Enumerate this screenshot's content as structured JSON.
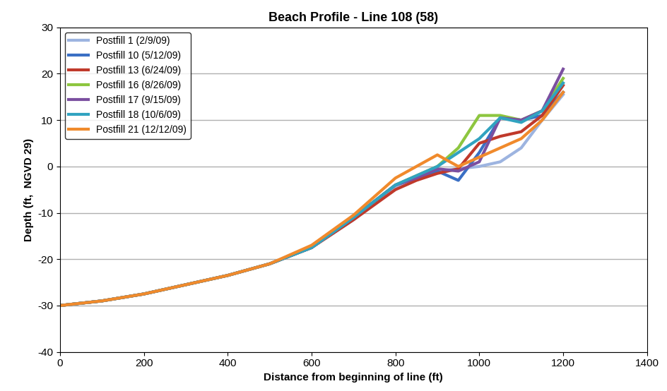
{
  "chart_data": {
    "type": "line",
    "title": "Beach Profile - Line 108 (58)",
    "x_label": "Distance from beginning of line (ft)",
    "y_label": "Depth (ft,  NGVD 29)",
    "x": [
      0,
      100,
      200,
      300,
      400,
      500,
      600,
      700,
      800,
      850,
      900,
      950,
      1000,
      1050,
      1100,
      1150,
      1200
    ],
    "series": [
      {
        "name": "Postfill 1 (2/9/09)",
        "color": "#9db4e0",
        "values": [
          -30,
          -29,
          -27.5,
          -25.5,
          -23.5,
          -21,
          -17.5,
          -11.5,
          -4.5,
          -2.5,
          -1,
          -0.5,
          0,
          1,
          4,
          10,
          15.5
        ]
      },
      {
        "name": "Postfill 10 (5/12/09)",
        "color": "#3a6fc4",
        "values": [
          -30,
          -29,
          -27.5,
          -25.5,
          -23.5,
          -21,
          -17.5,
          -11,
          -4,
          -2.5,
          -1,
          -3,
          3,
          10.5,
          10,
          11,
          16
        ]
      },
      {
        "name": "Postfill 13 (6/24/09)",
        "color": "#c0392b",
        "values": [
          -30,
          -29,
          -27.5,
          -25.5,
          -23.5,
          -21,
          -17.5,
          -11.5,
          -5,
          -3,
          -1.5,
          -0.5,
          5,
          6.5,
          7.5,
          11,
          17.5
        ]
      },
      {
        "name": "Postfill 16 (8/26/09)",
        "color": "#8dc63f",
        "values": [
          -30,
          -29,
          -27.5,
          -25.5,
          -23.5,
          -21,
          -17.5,
          -11,
          -4,
          -2,
          0,
          4,
          11,
          11,
          10,
          12,
          19
        ]
      },
      {
        "name": "Postfill 17 (9/15/09)",
        "color": "#7b4fa0",
        "values": [
          -30,
          -29,
          -27.5,
          -25.5,
          -23.5,
          -21,
          -17.5,
          -11,
          -4,
          -2.5,
          -0.5,
          -1,
          1,
          10.5,
          10,
          12,
          21
        ]
      },
      {
        "name": "Postfill 18 (10/6/09)",
        "color": "#31a3c0",
        "values": [
          -30,
          -29,
          -27.5,
          -25.5,
          -23.5,
          -21,
          -17.5,
          -11,
          -4,
          -2,
          0,
          3,
          6,
          10.5,
          9.5,
          12,
          18
        ]
      },
      {
        "name": "Postfill 21 (12/12/09)",
        "color": "#f08a2c",
        "values": [
          -30,
          -29,
          -27.5,
          -25.5,
          -23.5,
          -21,
          -17,
          -10.5,
          -2.5,
          0,
          2.5,
          0,
          2,
          4,
          6,
          10,
          16
        ]
      }
    ],
    "xlim": [
      0,
      1400
    ],
    "xticks": [
      0,
      200,
      400,
      600,
      800,
      1000,
      1200,
      1400
    ],
    "ylim": [
      -40,
      30
    ],
    "yticks": [
      -40,
      -30,
      -20,
      -10,
      0,
      10,
      20,
      30
    ],
    "grid": true,
    "legend": "upper left"
  }
}
